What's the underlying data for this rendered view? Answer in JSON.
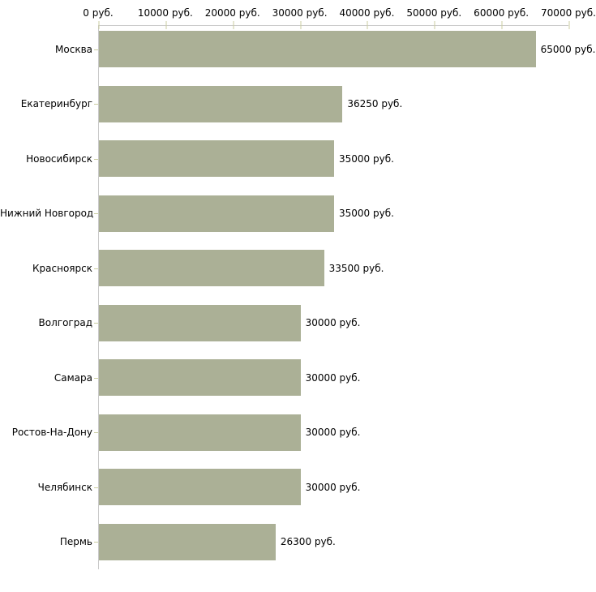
{
  "chart_data": {
    "type": "bar",
    "orientation": "horizontal",
    "title": "",
    "xlabel": "",
    "ylabel": "",
    "unit": "руб.",
    "axis_position": "top",
    "grid": false,
    "legend": false,
    "categories": [
      "Москва",
      "Екатеринбург",
      "Новосибирск",
      "Нижний Новгород",
      "Красноярск",
      "Волгоград",
      "Самара",
      "Ростов-На-Дону",
      "Челябинск",
      "Пермь"
    ],
    "values": [
      65000,
      36250,
      35000,
      35000,
      33500,
      30000,
      30000,
      30000,
      30000,
      26300
    ],
    "value_labels": [
      "65000 руб.",
      "36250 руб.",
      "35000 руб.",
      "35000 руб.",
      "33500 руб.",
      "30000 руб.",
      "30000 руб.",
      "30000 руб.",
      "30000 руб.",
      "26300 руб."
    ],
    "x_tick_labels": [
      "0 руб.",
      "10000 руб.",
      "20000 руб.",
      "30000 руб.",
      "40000 руб.",
      "50000 руб.",
      "60000 руб.",
      "70000 руб."
    ],
    "x_tick_values": [
      0,
      10000,
      20000,
      30000,
      40000,
      50000,
      60000,
      70000
    ],
    "xlim": [
      0,
      70000
    ],
    "colors": {
      "bar_fill": "#abb096",
      "axis_line": "#c9c9c9",
      "tick_mark": "#cbcda1",
      "text": "#000000",
      "background": "#ffffff"
    }
  }
}
